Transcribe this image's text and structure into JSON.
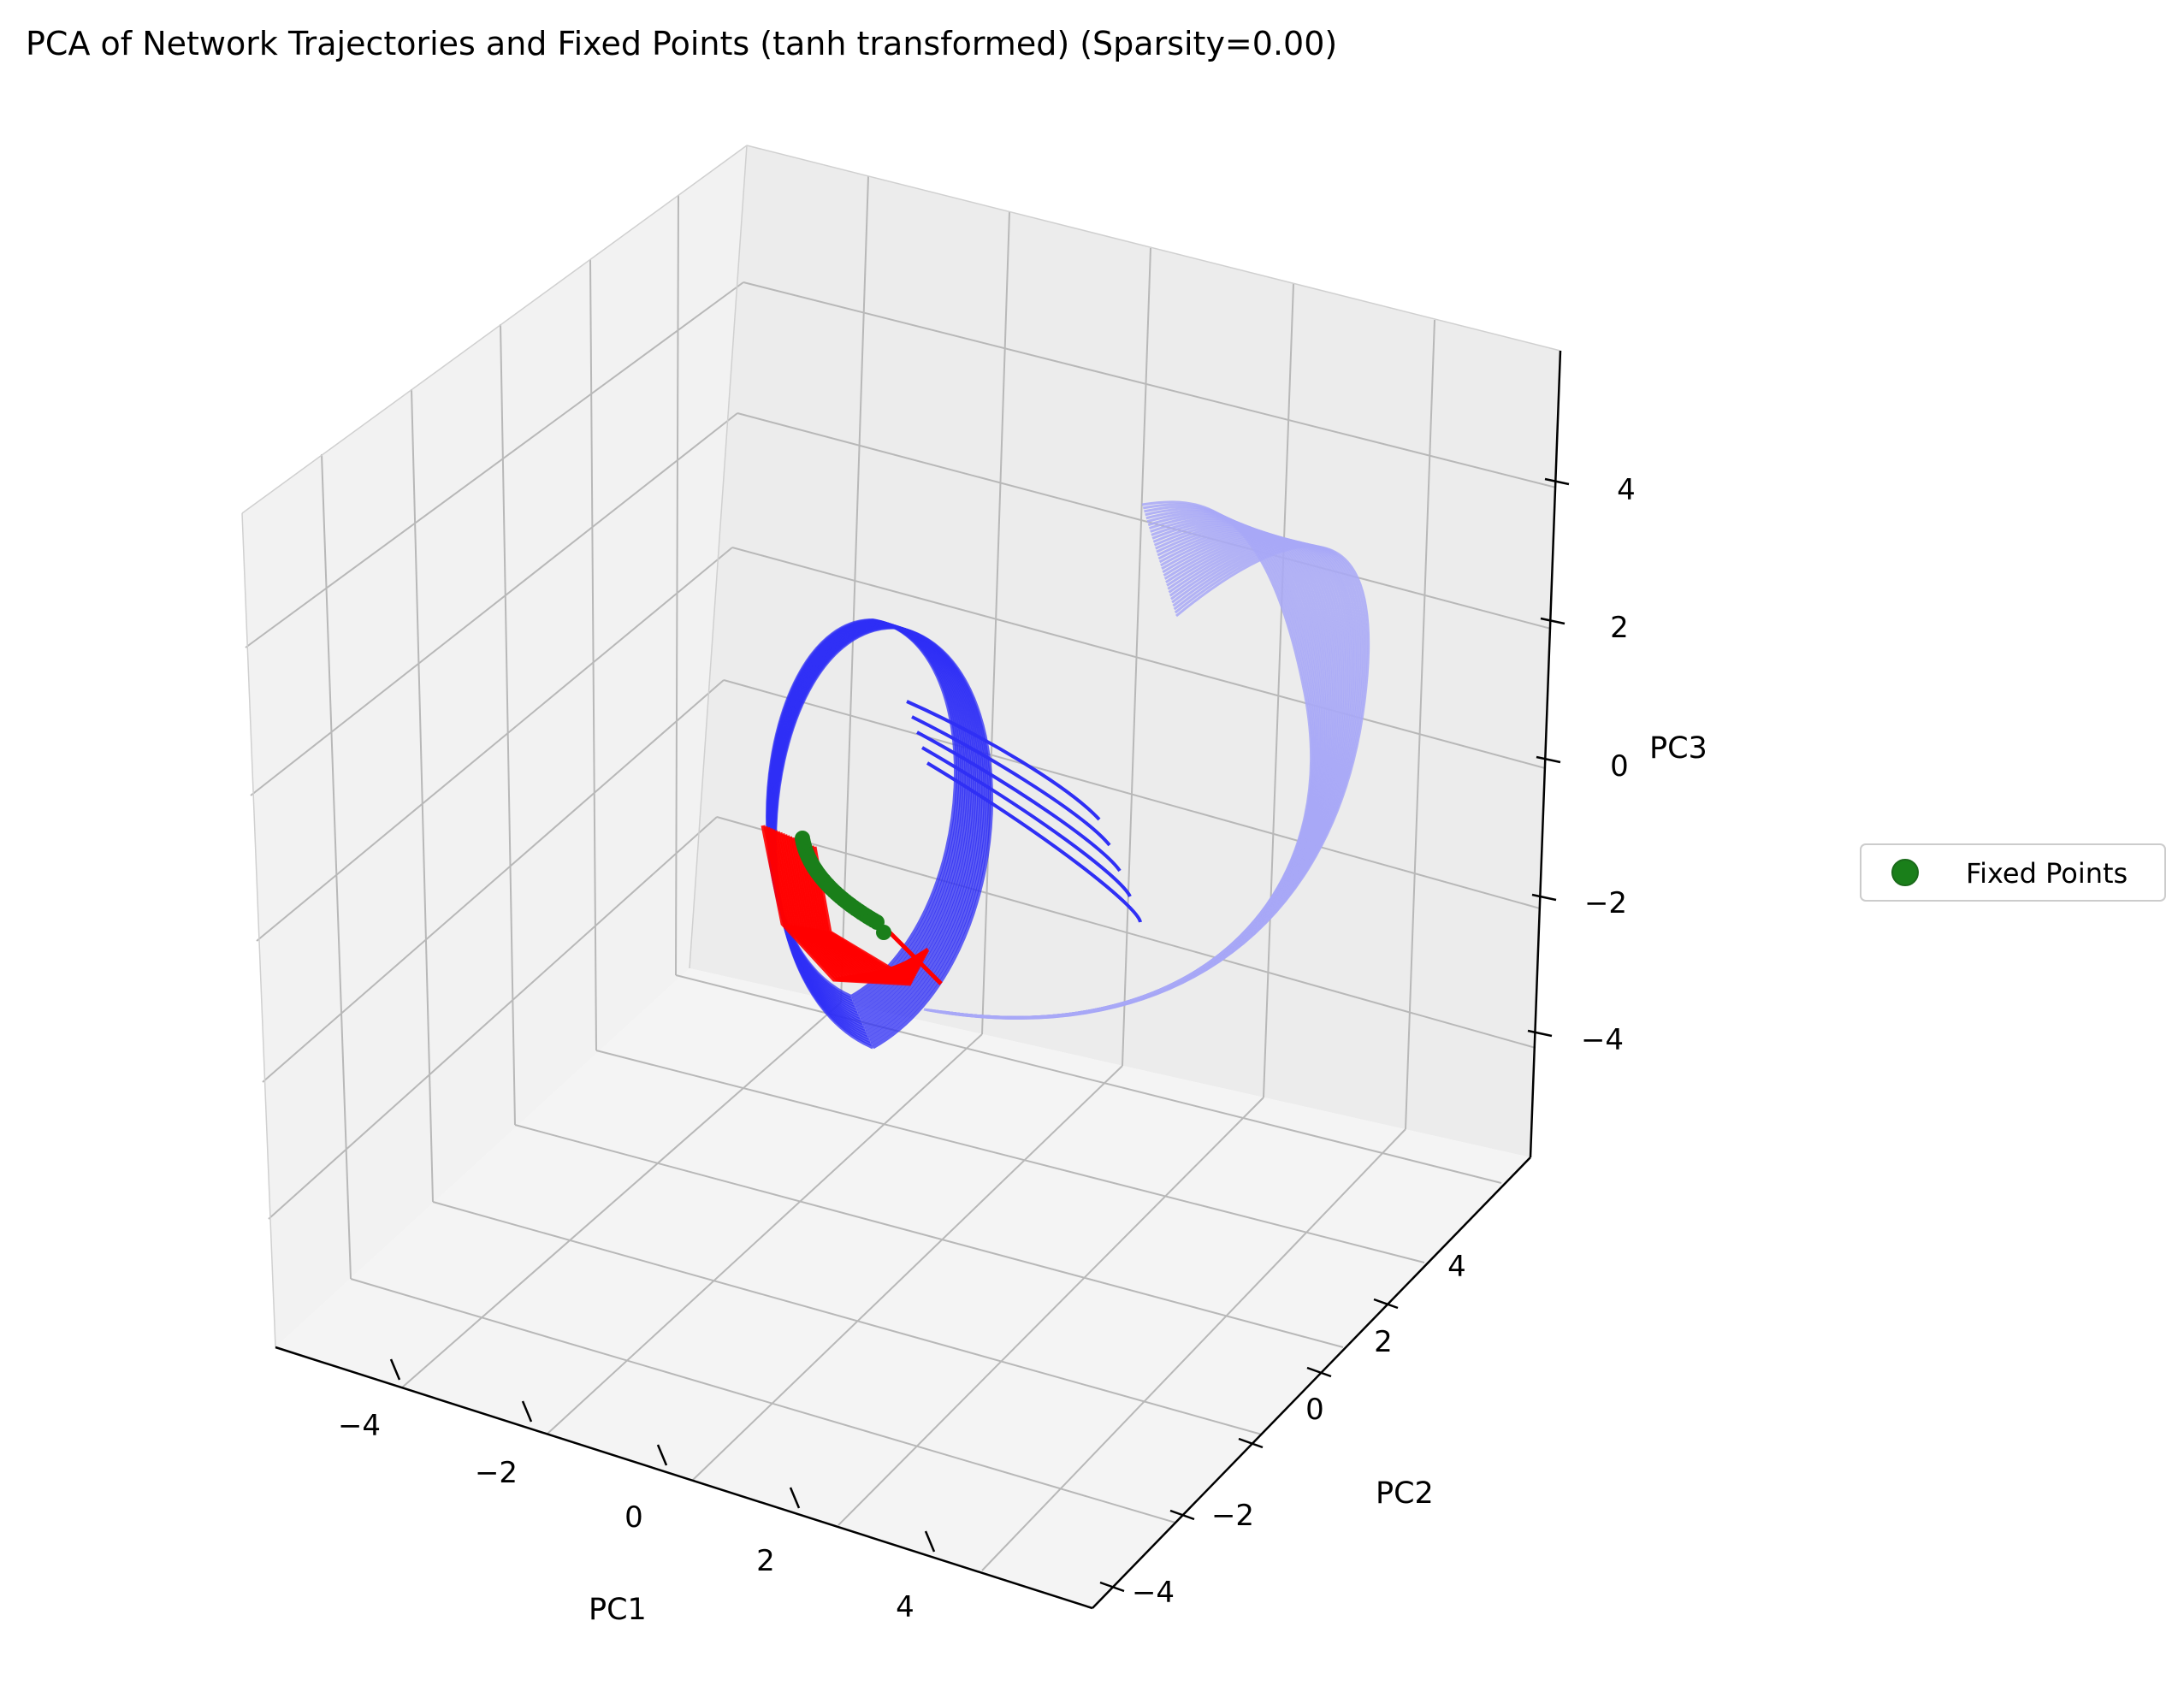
{
  "chart_data": {
    "type": "scatter",
    "title": "PCA of Network Trajectories and Fixed Points (tanh transformed) (Sparsity=0.00)",
    "xlabel": "PC1",
    "ylabel": "PC2",
    "zlabel": "PC3",
    "xlim": [
      -5.5,
      5.5
    ],
    "ylim": [
      -5.5,
      5.5
    ],
    "zlim": [
      -5.5,
      5.5
    ],
    "x_ticks": [
      "−4",
      "−2",
      "0",
      "2",
      "4"
    ],
    "y_ticks": [
      "−4",
      "−2",
      "0",
      "2",
      "4"
    ],
    "z_ticks": [
      "−4",
      "−2",
      "0",
      "2",
      "4"
    ],
    "grid": true,
    "legend": {
      "placement": "right",
      "entries": [
        {
          "label": "Fixed Points",
          "marker": "circle",
          "color": "#1a7f1a"
        }
      ]
    },
    "series": [
      {
        "name": "Fixed Points",
        "color": "#1a7f1a"
      }
    ],
    "colors": {
      "trajectory_dark": "#2f2ff5",
      "trajectory_light": "#a8a8f7",
      "trajectory_red": "#ff0000",
      "fixed_points": "#1a7f1a"
    }
  }
}
